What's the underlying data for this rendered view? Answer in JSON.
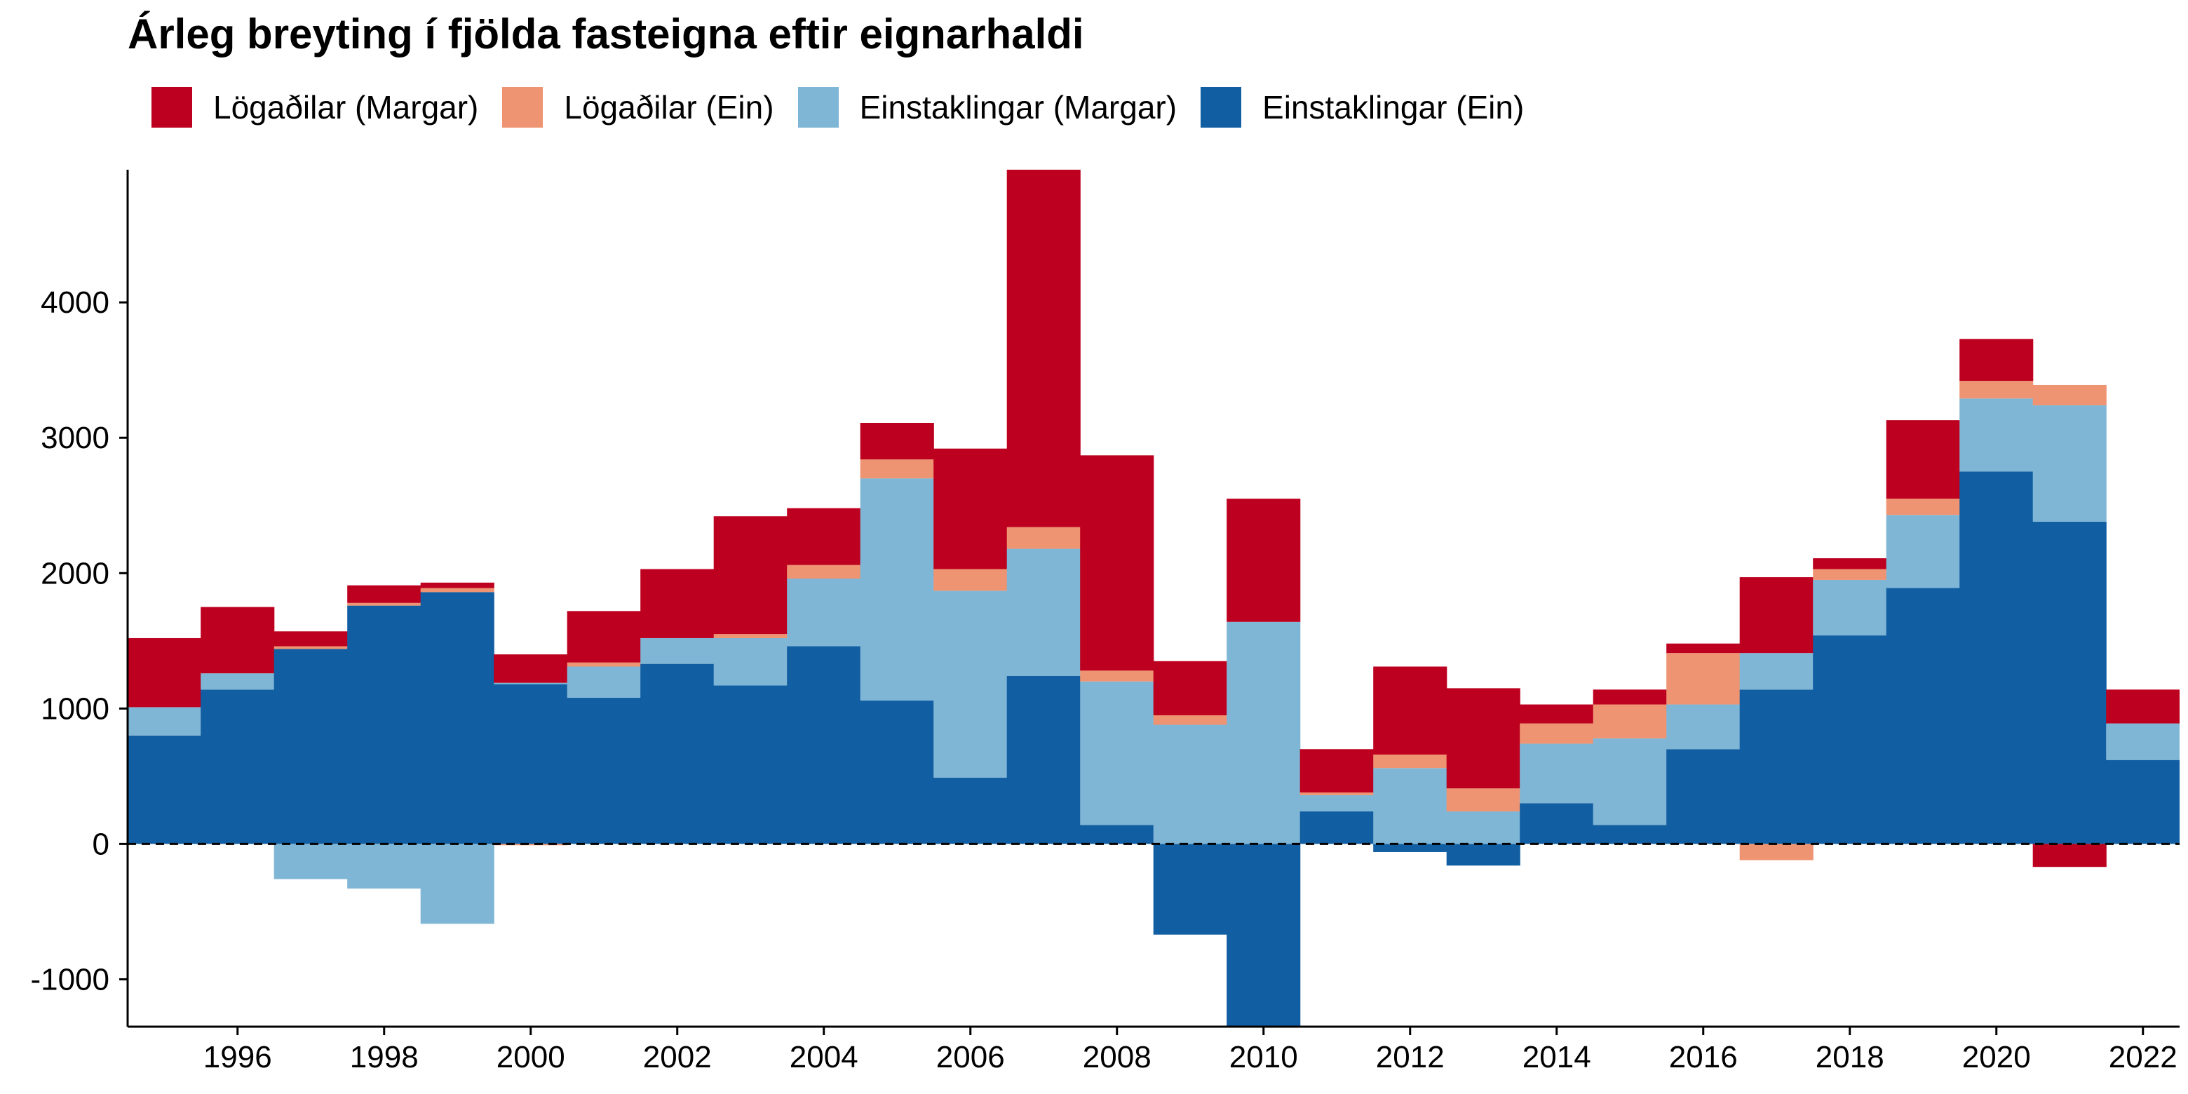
{
  "title": "Árleg breyting í fjölda fasteigna eftir eignarhaldi",
  "legend": {
    "items": [
      {
        "label": "Lögaðilar (Margar)",
        "color": "#bd001f"
      },
      {
        "label": "Lögaðilar (Ein)",
        "color": "#ef9472"
      },
      {
        "label": "Einstaklingar (Margar)",
        "color": "#80b6d5"
      },
      {
        "label": "Einstaklingar (Ein)",
        "color": "#115ea2"
      }
    ]
  },
  "chart_data": {
    "type": "bar",
    "stacked": true,
    "title": "Árleg breyting í fjölda fasteigna eftir eignarhaldi",
    "xlabel": "",
    "ylabel": "",
    "x": [
      1995,
      1996,
      1997,
      1998,
      1999,
      2000,
      2001,
      2002,
      2003,
      2004,
      2005,
      2006,
      2007,
      2008,
      2009,
      2010,
      2011,
      2012,
      2013,
      2014,
      2015,
      2016,
      2017,
      2018,
      2019,
      2020,
      2021,
      2022
    ],
    "xticks": [
      "1996",
      "1998",
      "2000",
      "2002",
      "2004",
      "2006",
      "2008",
      "2010",
      "2012",
      "2014",
      "2016",
      "2018",
      "2020",
      "2022"
    ],
    "yticks": [
      "-1000",
      "0",
      "1000",
      "2000",
      "3000",
      "4000"
    ],
    "ylim": [
      -1350,
      4980
    ],
    "xlim": [
      1994.5,
      2022.5
    ],
    "grid": false,
    "zero_line": "dashed",
    "legend_position": "top-left",
    "series": [
      {
        "name": "Einstaklingar (Ein)",
        "color": "#115ea2",
        "values": [
          800,
          1140,
          1440,
          1760,
          1860,
          1180,
          1080,
          1330,
          1170,
          1460,
          1060,
          490,
          1240,
          140,
          -670,
          -1350,
          240,
          -60,
          -160,
          300,
          140,
          700,
          1140,
          1540,
          1890,
          2750,
          2380,
          620
        ]
      },
      {
        "name": "Einstaklingar (Margar)",
        "color": "#80b6d5",
        "values": [
          210,
          120,
          -260,
          -330,
          -590,
          10,
          230,
          190,
          350,
          500,
          1640,
          1380,
          940,
          1060,
          880,
          1640,
          120,
          560,
          240,
          440,
          640,
          330,
          270,
          410,
          540,
          540,
          860,
          270
        ]
      },
      {
        "name": "Lögaðilar (Ein)",
        "color": "#ef9472",
        "values": [
          0,
          0,
          20,
          20,
          30,
          -10,
          30,
          0,
          30,
          100,
          140,
          160,
          160,
          80,
          70,
          0,
          20,
          100,
          170,
          150,
          250,
          380,
          -120,
          80,
          120,
          130,
          150,
          0
        ]
      },
      {
        "name": "Lögaðilar (Margar)",
        "color": "#bd001f",
        "values": [
          510,
          490,
          110,
          130,
          40,
          210,
          380,
          510,
          870,
          420,
          270,
          890,
          2650,
          1590,
          400,
          910,
          320,
          650,
          740,
          140,
          110,
          70,
          560,
          80,
          580,
          310,
          -170,
          250
        ]
      }
    ]
  }
}
